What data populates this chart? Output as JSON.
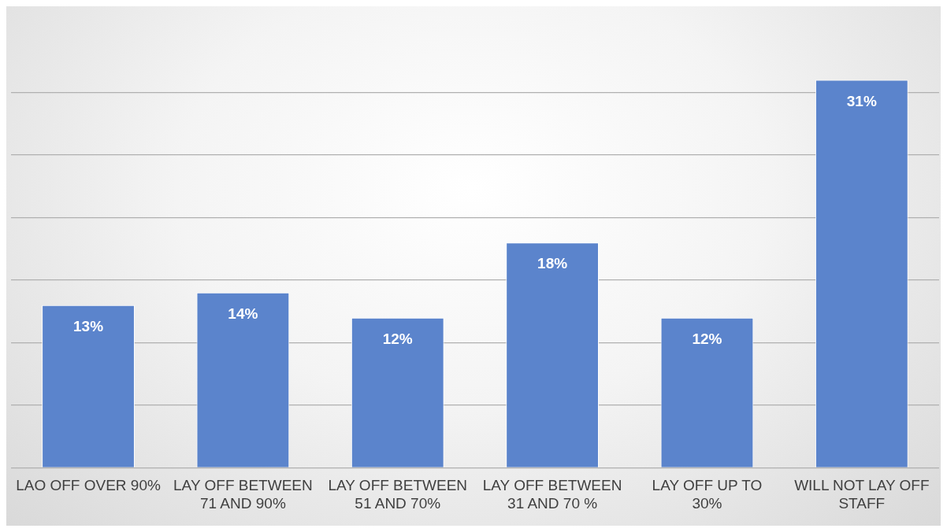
{
  "chart_data": {
    "type": "bar",
    "categories": [
      "LAO OFF OVER 90%",
      "LAY OFF BETWEEN 71 AND 90%",
      "LAY OFF BETWEEN 51 AND 70%",
      "LAY OFF BETWEEN 31 AND 70 %",
      "LAY OFF UP TO 30%",
      "WILL NOT LAY OFF STAFF"
    ],
    "values": [
      13,
      14,
      12,
      18,
      12,
      31
    ],
    "value_labels": [
      "13%",
      "14%",
      "12%",
      "18%",
      "12%",
      "31%"
    ],
    "color": "#5b84cc",
    "yticks": [
      {
        "value": 0,
        "label": null
      },
      {
        "value": 5,
        "label": null
      },
      {
        "value": 10,
        "label": null
      },
      {
        "value": 15,
        "label": null
      },
      {
        "value": 20,
        "label": null
      },
      {
        "value": 25,
        "label": null
      },
      {
        "value": 30,
        "label": null
      }
    ],
    "grid": "y",
    "tick_labels": "x"
  }
}
